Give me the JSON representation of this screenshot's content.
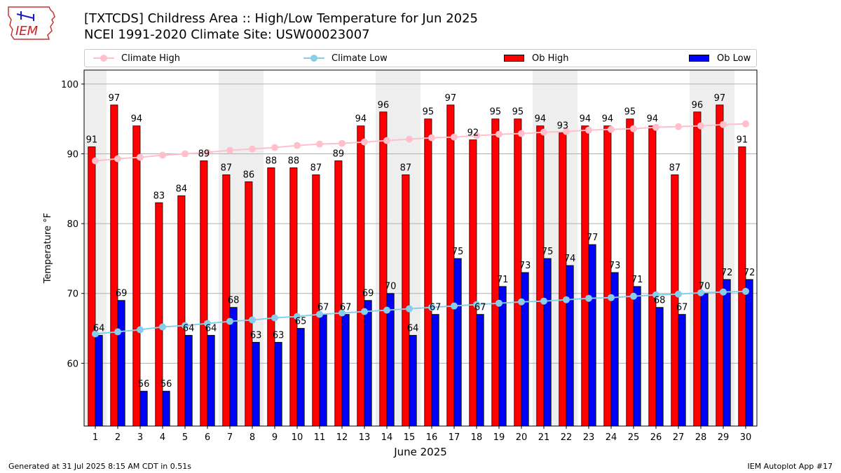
{
  "header": {
    "title_line1": "[TXTCDS] Childress Area :: High/Low Temperature for Jun 2025",
    "title_line2": "NCEI 1991-2020 Climate Site: USW00023007",
    "logo_text": "IEM"
  },
  "legend": {
    "climate_high": "Climate High",
    "climate_low": "Climate Low",
    "ob_high": "Ob High",
    "ob_low": "Ob Low"
  },
  "footer": {
    "generated": "Generated at 31 Jul 2025 8:15 AM CDT in 0.51s",
    "app": "IEM Autoplot App #17"
  },
  "colors": {
    "ob_high": "#ff0000",
    "ob_low": "#0000ff",
    "climate_high": "#ffc0cb",
    "climate_low": "#87ceeb",
    "weekend_band": "#eeeeee",
    "grid": "#b0b0b0"
  },
  "chart_data": {
    "type": "bar",
    "xlabel": "June 2025",
    "ylabel": "Temperature °F",
    "ylim": [
      51,
      102
    ],
    "yticks": [
      60,
      70,
      80,
      90,
      100
    ],
    "grid": "horizontal",
    "legend_position": "top",
    "categories": [
      "1",
      "2",
      "3",
      "4",
      "5",
      "6",
      "7",
      "8",
      "9",
      "10",
      "11",
      "12",
      "13",
      "14",
      "15",
      "16",
      "17",
      "18",
      "19",
      "20",
      "21",
      "22",
      "23",
      "24",
      "25",
      "26",
      "27",
      "28",
      "29",
      "30"
    ],
    "weekend_days": [
      1,
      7,
      8,
      14,
      15,
      21,
      22,
      28,
      29
    ],
    "series": [
      {
        "name": "Ob High",
        "kind": "bar",
        "values": [
          91,
          97,
          94,
          83,
          84,
          89,
          87,
          86,
          88,
          88,
          87,
          89,
          94,
          96,
          87,
          95,
          97,
          92,
          95,
          95,
          94,
          93,
          94,
          94,
          95,
          94,
          87,
          96,
          97,
          91
        ]
      },
      {
        "name": "Ob Low",
        "kind": "bar",
        "values": [
          64,
          69,
          56,
          56,
          64,
          64,
          68,
          63,
          63,
          65,
          67,
          67,
          69,
          70,
          64,
          67,
          75,
          67,
          71,
          73,
          75,
          74,
          77,
          73,
          71,
          68,
          67,
          70,
          72,
          72
        ]
      },
      {
        "name": "Climate High",
        "kind": "line",
        "values": [
          89.0,
          89.3,
          89.5,
          89.8,
          90.0,
          90.2,
          90.5,
          90.7,
          90.9,
          91.2,
          91.4,
          91.5,
          91.7,
          91.9,
          92.1,
          92.3,
          92.4,
          92.6,
          92.8,
          92.9,
          93.1,
          93.2,
          93.4,
          93.5,
          93.6,
          93.8,
          93.9,
          94.0,
          94.2,
          94.3
        ]
      },
      {
        "name": "Climate Low",
        "kind": "line",
        "values": [
          64.2,
          64.5,
          64.8,
          65.2,
          65.4,
          65.7,
          66.0,
          66.2,
          66.5,
          66.7,
          67.0,
          67.2,
          67.4,
          67.6,
          67.8,
          68.0,
          68.2,
          68.4,
          68.6,
          68.8,
          68.9,
          69.1,
          69.3,
          69.4,
          69.6,
          69.8,
          69.9,
          70.1,
          70.2,
          70.3
        ]
      }
    ]
  }
}
